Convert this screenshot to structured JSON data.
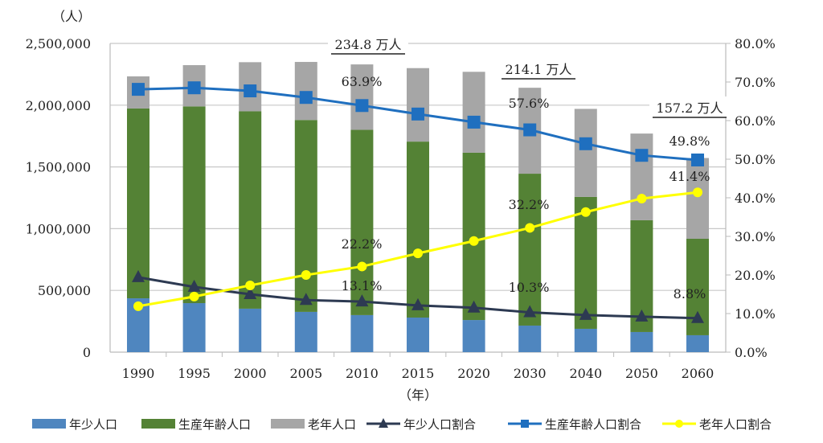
{
  "chart_data": {
    "type": "bar+line",
    "categories": [
      "1990",
      "1995",
      "2000",
      "2005",
      "2010",
      "2015",
      "2020",
      "2030",
      "2040",
      "2050",
      "2060"
    ],
    "xlabel": "（年）",
    "ylabel_left": "（人）",
    "ylim_left": [
      0,
      2500000
    ],
    "yticks_left": [
      "0",
      "500,000",
      "1,000,000",
      "1,500,000",
      "2,000,000",
      "2,500,000"
    ],
    "ylim_right": [
      0,
      80
    ],
    "yticks_right": [
      "0.0%",
      "10.0%",
      "20.0%",
      "30.0%",
      "40.0%",
      "50.0%",
      "60.0%",
      "70.0%",
      "80.0%"
    ],
    "grid": true,
    "legend_position": "bottom",
    "bar_series": [
      {
        "name": "年少人口",
        "color": "#4f86bf",
        "values": [
          436000,
          397000,
          352000,
          326000,
          300000,
          280000,
          260000,
          215000,
          189000,
          163000,
          137000
        ]
      },
      {
        "name": "生産年齢人口",
        "color": "#548235",
        "values": [
          1537000,
          1593000,
          1598000,
          1554000,
          1500000,
          1425000,
          1355000,
          1230000,
          1068000,
          905000,
          781000
        ]
      },
      {
        "name": "老年人口",
        "color": "#a6a6a6",
        "values": [
          260000,
          334000,
          398000,
          470000,
          530000,
          595000,
          655000,
          696000,
          713000,
          702000,
          654000
        ]
      }
    ],
    "line_series": [
      {
        "name": "年少人口割合",
        "color": "#2d3a52",
        "marker": "triangle",
        "values": [
          19.4,
          16.9,
          15.0,
          13.5,
          13.1,
          12.1,
          11.5,
          10.3,
          9.6,
          9.2,
          8.8
        ]
      },
      {
        "name": "生産年齢人口割合",
        "color": "#1f6fbf",
        "marker": "square",
        "values": [
          68.1,
          68.5,
          67.7,
          66.0,
          63.9,
          61.7,
          59.6,
          57.6,
          54.0,
          51.0,
          49.8
        ]
      },
      {
        "name": "老年人口割合",
        "color": "#ffff00",
        "marker": "circle",
        "values": [
          11.9,
          14.4,
          17.3,
          20.0,
          22.2,
          25.6,
          28.8,
          32.2,
          36.3,
          39.8,
          41.4
        ]
      }
    ],
    "annotations": [
      {
        "text": "234.8 万人",
        "at": "2000",
        "underline": true
      },
      {
        "text": "214.1 万人",
        "at": "2030",
        "underline": true
      },
      {
        "text": "157.2 万人",
        "at": "2060",
        "underline": true
      },
      {
        "text": "63.9%",
        "at": "2010"
      },
      {
        "text": "22.2%",
        "at": "2010"
      },
      {
        "text": "13.1%",
        "at": "2010"
      },
      {
        "text": "57.6%",
        "at": "2030"
      },
      {
        "text": "32.2%",
        "at": "2030"
      },
      {
        "text": "10.3%",
        "at": "2030"
      },
      {
        "text": "49.8%",
        "at": "2060"
      },
      {
        "text": "41.4%",
        "at": "2060"
      },
      {
        "text": "8.8%",
        "at": "2060"
      }
    ]
  }
}
